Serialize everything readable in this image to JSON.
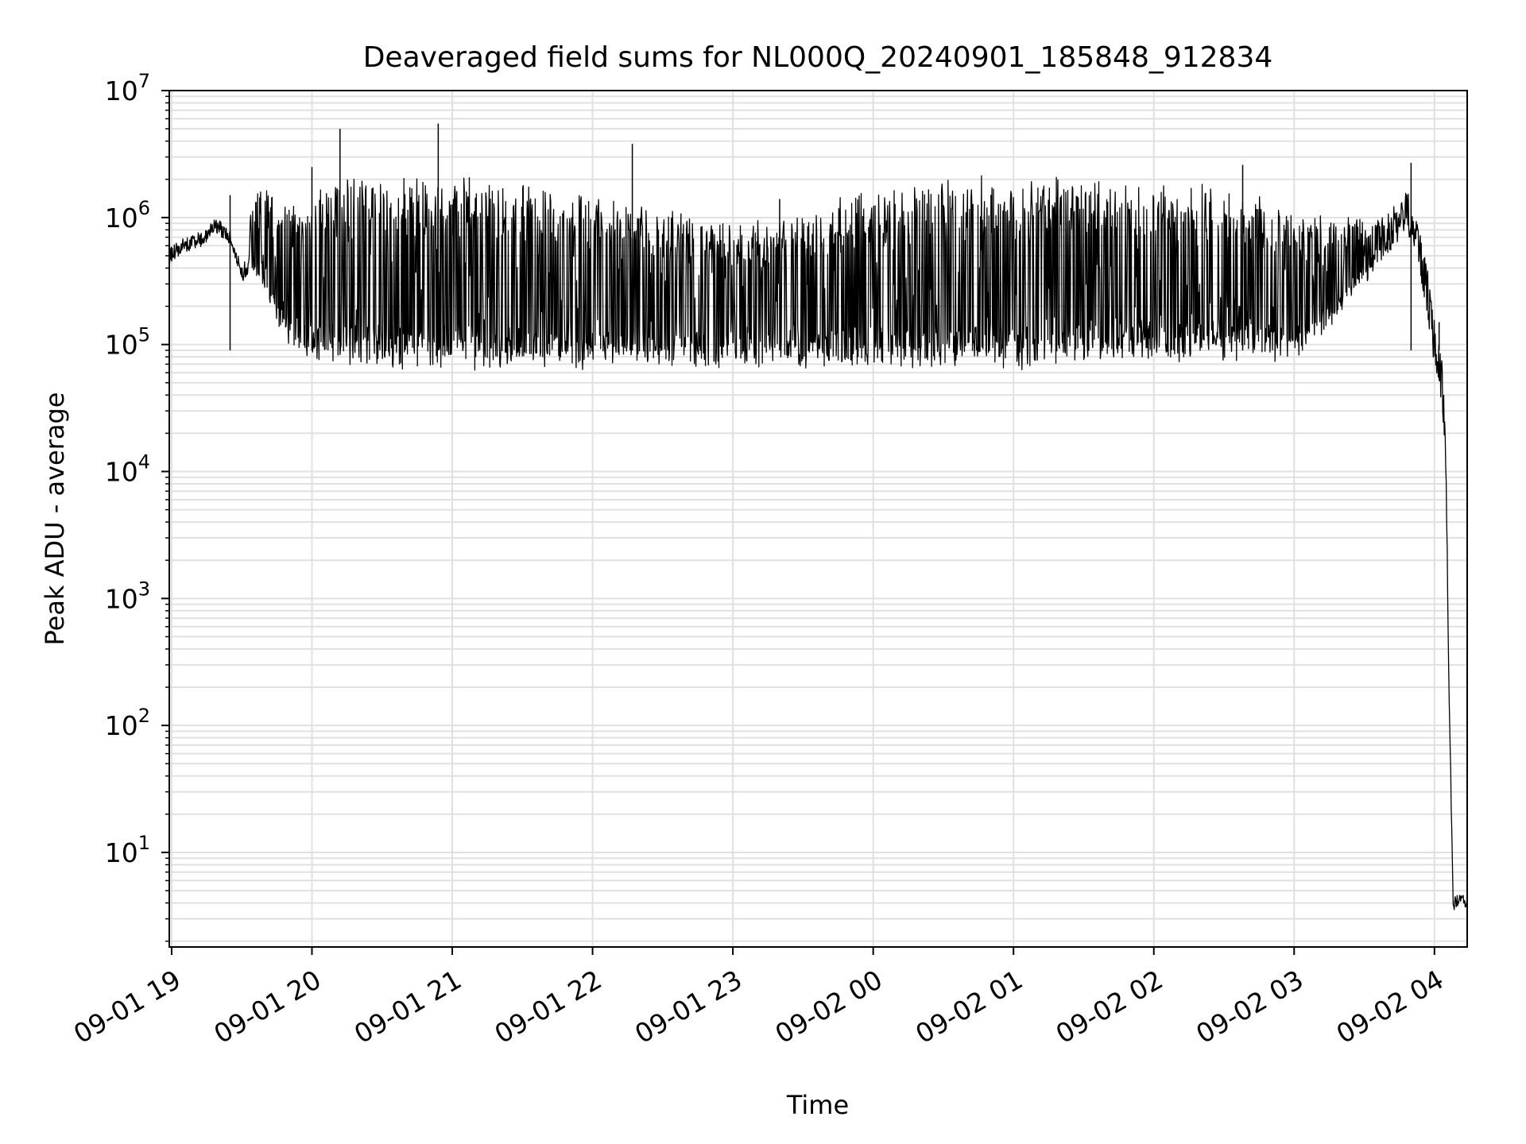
{
  "chart_data": {
    "type": "line",
    "title": "Deaveraged field sums for NL000Q_20240901_185848_912834",
    "xlabel": "Time",
    "ylabel": "Peak ADU - average",
    "yscale": "log",
    "ylim": [
      1.8,
      10000000
    ],
    "xlim": [
      "2024-09-01 18:59",
      "2024-09-02 04:14"
    ],
    "grid": true,
    "line_color": "#000000",
    "grid_color": "#e0e0e0",
    "x_ticks": [
      {
        "value": "2024-09-01 19:00",
        "label": "09-01 19"
      },
      {
        "value": "2024-09-01 20:00",
        "label": "09-01 20"
      },
      {
        "value": "2024-09-01 21:00",
        "label": "09-01 21"
      },
      {
        "value": "2024-09-01 22:00",
        "label": "09-01 22"
      },
      {
        "value": "2024-09-01 23:00",
        "label": "09-01 23"
      },
      {
        "value": "2024-09-02 00:00",
        "label": "09-02 00"
      },
      {
        "value": "2024-09-02 01:00",
        "label": "09-02 01"
      },
      {
        "value": "2024-09-02 02:00",
        "label": "09-02 02"
      },
      {
        "value": "2024-09-02 03:00",
        "label": "09-02 03"
      },
      {
        "value": "2024-09-02 04:00",
        "label": "09-02 04"
      }
    ],
    "y_ticks": [
      {
        "value": 10,
        "base": "10",
        "exp": "1"
      },
      {
        "value": 100,
        "base": "10",
        "exp": "2"
      },
      {
        "value": 1000,
        "base": "10",
        "exp": "3"
      },
      {
        "value": 10000,
        "base": "10",
        "exp": "4"
      },
      {
        "value": 100000,
        "base": "10",
        "exp": "5"
      },
      {
        "value": 1000000,
        "base": "10",
        "exp": "6"
      },
      {
        "value": 10000000,
        "base": "10",
        "exp": "7"
      }
    ],
    "series": [
      {
        "x": [
          "2024-09-01 18:59",
          "2024-09-01 19:05",
          "2024-09-01 19:15",
          "2024-09-01 19:18",
          "2024-09-01 19:25",
          "2024-09-01 19:30",
          "2024-09-01 19:35",
          "2024-09-01 19:40",
          "2024-09-01 19:45",
          "2024-09-01 19:50",
          "2024-09-01 19:55",
          "2024-09-01 20:00",
          "2024-09-01 20:10",
          "2024-09-01 20:20",
          "2024-09-01 20:30",
          "2024-09-01 20:40",
          "2024-09-01 20:50",
          "2024-09-01 21:00",
          "2024-09-01 21:20",
          "2024-09-01 21:40",
          "2024-09-01 22:00",
          "2024-09-01 22:20",
          "2024-09-01 22:40",
          "2024-09-01 23:00",
          "2024-09-01 23:20",
          "2024-09-01 23:40",
          "2024-09-02 00:00",
          "2024-09-02 00:20",
          "2024-09-02 00:40",
          "2024-09-02 01:00",
          "2024-09-02 01:20",
          "2024-09-02 01:40",
          "2024-09-02 02:00",
          "2024-09-02 02:20",
          "2024-09-02 02:40",
          "2024-09-02 02:55",
          "2024-09-02 03:10",
          "2024-09-02 03:25",
          "2024-09-02 03:40",
          "2024-09-02 03:48",
          "2024-09-02 03:53",
          "2024-09-02 03:57",
          "2024-09-02 04:00",
          "2024-09-02 04:03",
          "2024-09-02 04:05",
          "2024-09-02 04:06",
          "2024-09-02 04:08",
          "2024-09-02 04:14"
        ],
        "y": [
          500000,
          600000,
          700000,
          900000,
          700000,
          350000,
          600000,
          900000,
          700000,
          450000,
          250000,
          150000,
          90000,
          80000,
          75000,
          80000,
          75000,
          80000,
          80000,
          85000,
          75000,
          80000,
          80000,
          75000,
          80000,
          85000,
          80000,
          80000,
          85000,
          80000,
          85000,
          90000,
          90000,
          95000,
          95000,
          80000,
          150000,
          300000,
          600000,
          900000,
          500000,
          150000,
          80000,
          40000,
          10000,
          300,
          4,
          4
        ],
        "baseline": [
          500000,
          600000,
          700000,
          900000,
          700000,
          350000,
          400000,
          250000,
          150000,
          110000,
          90000,
          80000,
          75000,
          70000,
          72000,
          70000,
          68000,
          70000,
          70000,
          72000,
          70000,
          72000,
          70000,
          70000,
          72000,
          72000,
          70000,
          70000,
          72000,
          70000,
          75000,
          78000,
          80000,
          82000,
          80000,
          75000,
          120000,
          250000,
          550000,
          900000,
          500000,
          150000,
          80000,
          40000,
          10000,
          300,
          4,
          4
        ],
        "peak": [
          500000,
          600000,
          700000,
          900000,
          700000,
          350000,
          1500000,
          1600000,
          1500000,
          1300000,
          1200000,
          1500000,
          1800000,
          1900000,
          1900000,
          1850000,
          1800000,
          1900000,
          1800000,
          1700000,
          1500000,
          1200000,
          1000000,
          800000,
          900000,
          1300000,
          1500000,
          1800000,
          1900000,
          1900000,
          1850000,
          1800000,
          1800000,
          1700000,
          1500000,
          1200000,
          1000000,
          900000,
          1000000,
          1500000,
          900000,
          400000,
          150000,
          80000,
          15000,
          300,
          4,
          4
        ]
      }
    ],
    "spikes": [
      {
        "x": "2024-09-01 19:25",
        "y": 1500000
      },
      {
        "x": "2024-09-01 20:00",
        "y": 2500000
      },
      {
        "x": "2024-09-01 20:12",
        "y": 5000000
      },
      {
        "x": "2024-09-01 20:54",
        "y": 5500000
      },
      {
        "x": "2024-09-01 22:17",
        "y": 3800000
      },
      {
        "x": "2024-09-01 23:20",
        "y": 1400000
      },
      {
        "x": "2024-09-02 02:38",
        "y": 2600000
      },
      {
        "x": "2024-09-02 03:50",
        "y": 2700000
      },
      {
        "x": "2024-09-02 04:02",
        "y": 150000
      }
    ]
  }
}
